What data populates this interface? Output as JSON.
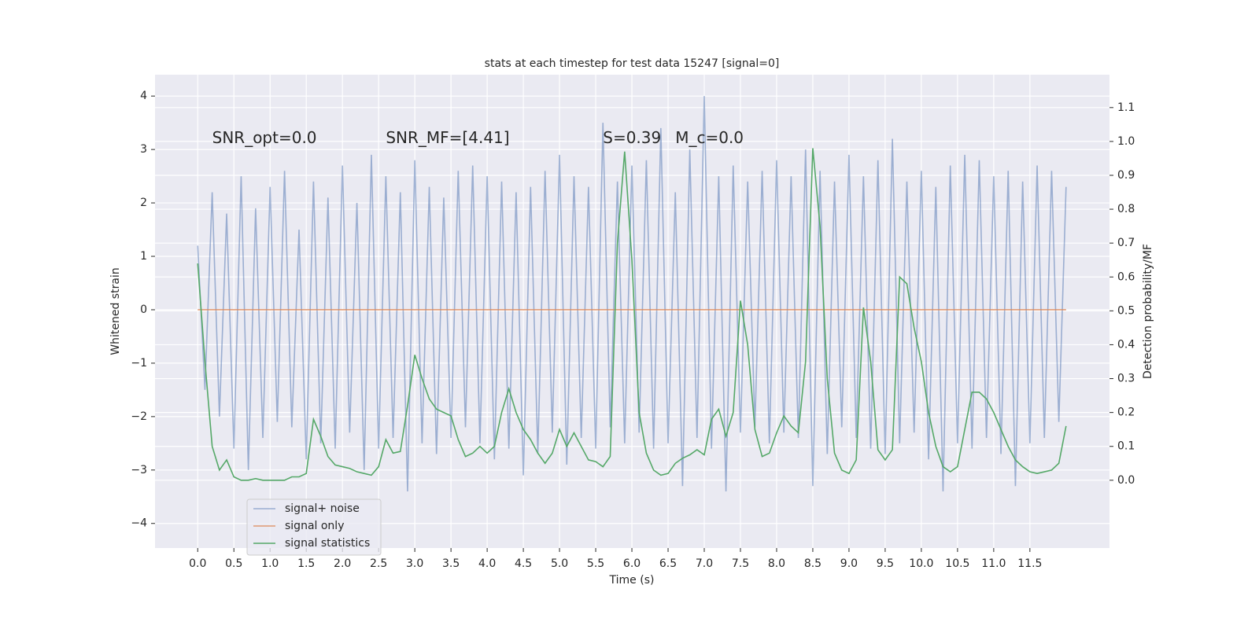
{
  "chart_data": {
    "type": "line",
    "title": "stats at each timestep for test data 15247 [signal=0]",
    "xlabel": "Time (s)",
    "ylabel": "Whitened strain",
    "y2label": "Detection probability/MF",
    "annotations": [
      {
        "text": "SNR_opt=0.0",
        "x": 0.2,
        "y": 3.2
      },
      {
        "text": "SNR_MF=[4.41]",
        "x": 2.6,
        "y": 3.2
      },
      {
        "text": "S=0.39",
        "x": 5.6,
        "y": 3.2
      },
      {
        "text": "M_c=0.0",
        "x": 6.6,
        "y": 3.2
      }
    ],
    "x": [
      0,
      0.1,
      0.2,
      0.3,
      0.4,
      0.5,
      0.6,
      0.7,
      0.8,
      0.9,
      1,
      1.1,
      1.2,
      1.3,
      1.4,
      1.5,
      1.6,
      1.7,
      1.8,
      1.9,
      2,
      2.1,
      2.2,
      2.3,
      2.4,
      2.5,
      2.6,
      2.7,
      2.8,
      2.9,
      3,
      3.1,
      3.2,
      3.3,
      3.4,
      3.5,
      3.6,
      3.7,
      3.8,
      3.9,
      4,
      4.1,
      4.2,
      4.3,
      4.4,
      4.5,
      4.6,
      4.7,
      4.8,
      4.9,
      5,
      5.1,
      5.2,
      5.3,
      5.4,
      5.5,
      5.6,
      5.7,
      5.8,
      5.9,
      6,
      6.1,
      6.2,
      6.3,
      6.4,
      6.5,
      6.6,
      6.7,
      6.8,
      6.9,
      7,
      7.1,
      7.2,
      7.3,
      7.4,
      7.5,
      7.6,
      7.7,
      7.8,
      7.9,
      8,
      8.1,
      8.2,
      8.3,
      8.4,
      8.5,
      8.6,
      8.7,
      8.8,
      8.9,
      9,
      9.1,
      9.2,
      9.3,
      9.4,
      9.5,
      9.6,
      9.7,
      9.8,
      9.9,
      10,
      10.1,
      10.2,
      10.3,
      10.4,
      10.5,
      10.6,
      10.7,
      10.8,
      10.9,
      11,
      11.1,
      11.2,
      11.3,
      11.4,
      11.5,
      11.6,
      11.7,
      11.8,
      11.9,
      12
    ],
    "series": [
      {
        "name": "signal+ noise",
        "color": "#4c72b0",
        "opacity": 0.5,
        "axis": "y",
        "values": [
          1.2,
          -1.5,
          2.2,
          -2.0,
          1.8,
          -2.6,
          2.5,
          -3.0,
          1.9,
          -2.4,
          2.3,
          -2.1,
          2.6,
          -2.2,
          1.5,
          -2.8,
          2.4,
          -2.5,
          2.1,
          -2.6,
          2.7,
          -2.3,
          2.0,
          -3.0,
          2.9,
          -2.6,
          2.5,
          -2.4,
          2.2,
          -3.4,
          2.8,
          -2.5,
          2.3,
          -2.7,
          2.1,
          -2.4,
          2.6,
          -2.2,
          2.7,
          -2.5,
          2.5,
          -2.8,
          2.4,
          -2.6,
          2.2,
          -3.1,
          2.3,
          -2.7,
          2.6,
          -2.3,
          2.9,
          -2.9,
          2.5,
          -2.4,
          2.3,
          -2.6,
          3.5,
          -2.2,
          2.4,
          -2.5,
          2.7,
          -2.3,
          2.8,
          -2.6,
          3.4,
          -2.5,
          2.2,
          -3.3,
          3.0,
          -2.4,
          4.0,
          -2.6,
          2.5,
          -3.4,
          2.7,
          -2.3,
          2.4,
          -2.2,
          2.6,
          -2.5,
          2.8,
          -2.3,
          2.5,
          -2.4,
          3.0,
          -3.3,
          2.6,
          -2.7,
          2.4,
          -2.2,
          2.9,
          -2.4,
          2.5,
          -2.6,
          2.8,
          -2.7,
          3.2,
          -2.5,
          2.4,
          -2.3,
          2.6,
          -2.8,
          2.3,
          -3.4,
          2.7,
          -2.5,
          2.9,
          -2.6,
          2.8,
          -2.4,
          2.5,
          -2.7,
          2.6,
          -3.3,
          2.4,
          -2.5,
          2.7,
          -2.4,
          2.6,
          -2.1,
          2.3
        ]
      },
      {
        "name": "signal only",
        "color": "#dd8452",
        "opacity": 0.8,
        "axis": "y",
        "values": [
          0,
          0,
          0,
          0,
          0,
          0,
          0,
          0,
          0,
          0,
          0,
          0,
          0,
          0,
          0,
          0,
          0,
          0,
          0,
          0,
          0,
          0,
          0,
          0,
          0,
          0,
          0,
          0,
          0,
          0,
          0,
          0,
          0,
          0,
          0,
          0,
          0,
          0,
          0,
          0,
          0,
          0,
          0,
          0,
          0,
          0,
          0,
          0,
          0,
          0,
          0,
          0,
          0,
          0,
          0,
          0,
          0,
          0,
          0,
          0,
          0,
          0,
          0,
          0,
          0,
          0,
          0,
          0,
          0,
          0,
          0,
          0,
          0,
          0,
          0,
          0,
          0,
          0,
          0,
          0,
          0,
          0,
          0,
          0,
          0,
          0,
          0,
          0,
          0,
          0,
          0,
          0,
          0,
          0,
          0,
          0,
          0,
          0,
          0,
          0,
          0,
          0,
          0,
          0,
          0,
          0,
          0,
          0,
          0,
          0,
          0,
          0,
          0,
          0,
          0,
          0,
          0,
          0,
          0,
          0,
          0
        ]
      },
      {
        "name": "signal statistics",
        "color": "#55a868",
        "opacity": 1,
        "axis": "y2",
        "values": [
          0.64,
          0.35,
          0.1,
          0.03,
          0.06,
          0.01,
          0,
          0,
          0.005,
          0,
          0,
          0,
          0,
          0.01,
          0.01,
          0.02,
          0.18,
          0.13,
          0.07,
          0.045,
          0.04,
          0.035,
          0.025,
          0.02,
          0.015,
          0.04,
          0.12,
          0.08,
          0.085,
          0.22,
          0.37,
          0.3,
          0.24,
          0.21,
          0.2,
          0.19,
          0.12,
          0.07,
          0.08,
          0.1,
          0.08,
          0.1,
          0.2,
          0.27,
          0.2,
          0.15,
          0.12,
          0.08,
          0.05,
          0.08,
          0.15,
          0.1,
          0.14,
          0.1,
          0.06,
          0.055,
          0.04,
          0.07,
          0.7,
          0.97,
          0.65,
          0.2,
          0.08,
          0.03,
          0.015,
          0.02,
          0.05,
          0.065,
          0.075,
          0.09,
          0.075,
          0.18,
          0.21,
          0.13,
          0.2,
          0.53,
          0.4,
          0.15,
          0.07,
          0.08,
          0.14,
          0.19,
          0.16,
          0.14,
          0.35,
          0.98,
          0.75,
          0.3,
          0.08,
          0.03,
          0.02,
          0.06,
          0.51,
          0.35,
          0.09,
          0.06,
          0.09,
          0.6,
          0.58,
          0.45,
          0.35,
          0.2,
          0.1,
          0.04,
          0.025,
          0.04,
          0.15,
          0.26,
          0.26,
          0.24,
          0.2,
          0.15,
          0.1,
          0.06,
          0.04,
          0.025,
          0.02,
          0.025,
          0.03,
          0.05,
          0.16
        ]
      }
    ],
    "xlim": [
      -0.59,
      12.6
    ],
    "ylim": [
      -4.46,
      4.4
    ],
    "y2lim": [
      -0.2,
      1.197
    ],
    "xticks": [
      {
        "value": 0,
        "label": "0.0"
      },
      0.5,
      {
        "value": 1,
        "label": "1.0"
      },
      1.5,
      {
        "value": 2,
        "label": "2.0"
      },
      2.5,
      {
        "value": 3,
        "label": "3.0"
      },
      3.5,
      {
        "value": 4,
        "label": "4.0"
      },
      4.5,
      {
        "value": 5,
        "label": "5.0"
      },
      5.5,
      {
        "value": 6,
        "label": "6.0"
      },
      6.5,
      {
        "value": 7,
        "label": "7.0"
      },
      7.5,
      {
        "value": 8,
        "label": "8.0"
      },
      8.5,
      {
        "value": 9,
        "label": "9.0"
      },
      9.5,
      {
        "value": 10,
        "label": "10.0"
      },
      10.5,
      {
        "value": 11,
        "label": "11.0"
      },
      11.5
    ],
    "yticks": [
      {
        "value": -4,
        "label": "−4"
      },
      {
        "value": -3,
        "label": "−3"
      },
      {
        "value": -2,
        "label": "−2"
      },
      {
        "value": -1,
        "label": "−1"
      },
      0,
      1,
      2,
      3,
      4
    ],
    "y2ticks": [
      {
        "value": 0,
        "label": "0.0"
      },
      0.1,
      0.2,
      0.3,
      0.4,
      0.5,
      0.6,
      0.7,
      0.8,
      0.9,
      {
        "value": 1,
        "label": "1.0"
      },
      1.1
    ],
    "grid": true,
    "legend": "lower left",
    "background": "#eaeaf2"
  }
}
